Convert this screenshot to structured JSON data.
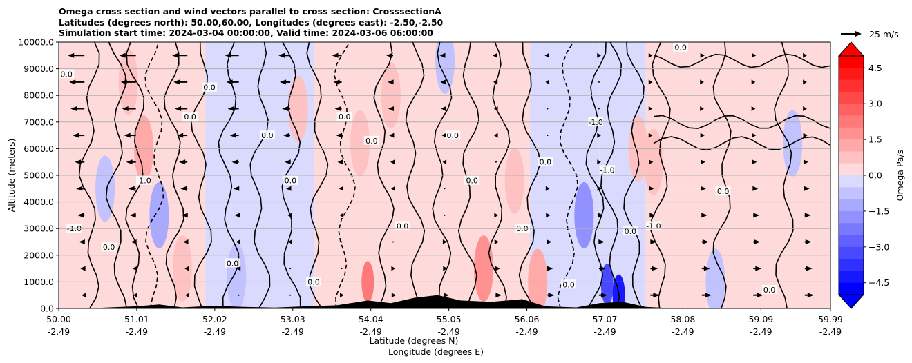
{
  "chart_data": {
    "type": "heatmap",
    "title_lines": [
      "Omega cross section and wind vectors parallel to cross section: CrosssectionA",
      "Latitudes (degrees north): 50.00,60.00, Longitudes (degrees east): -2.50,-2.50",
      "Simulation start time: 2024-03-04 00:00:00, Valid time: 2024-03-06 06:00:00"
    ],
    "ylabel": "Altitude (meters)",
    "xlabel_lines": [
      "Latitude (degrees N)",
      "Longitude (degrees E)"
    ],
    "x_ticks_lat": [
      "50.00",
      "51.01",
      "52.02",
      "53.03",
      "54.04",
      "55.05",
      "56.06",
      "57.07",
      "58.08",
      "59.09",
      "59.99"
    ],
    "x_ticks_lon": [
      "-2.49",
      "-2.49",
      "-2.49",
      "-2.49",
      "-2.49",
      "-2.49",
      "-2.49",
      "-2.49",
      "-2.49",
      "-2.49",
      "-2.49"
    ],
    "y_ticks": [
      "0.0",
      "1000.0",
      "2000.0",
      "3000.0",
      "4000.0",
      "5000.0",
      "6000.0",
      "7000.0",
      "8000.0",
      "9000.0",
      "10000.0"
    ],
    "xlim": [
      50.0,
      59.99
    ],
    "ylim": [
      0,
      10000
    ],
    "grid": "horizontal",
    "colorbar": {
      "label": "Omega Pa/s",
      "ticks": [
        "4.5",
        "3.0",
        "1.5",
        "0.0",
        "−1.5",
        "−3.0",
        "−4.5"
      ],
      "range": [
        -5.0,
        5.0
      ],
      "extend": "both",
      "neg_color": "#0000ff",
      "pos_color": "#ff0000"
    },
    "quiver_key": {
      "label": "25 m/s"
    },
    "regions": [
      {
        "lat_from": 50.0,
        "lat_to": 51.9,
        "alt_from": 0,
        "alt_to": 10000,
        "omega": 0.3
      },
      {
        "lat_from": 51.9,
        "lat_to": 53.3,
        "alt_from": 0,
        "alt_to": 10000,
        "omega": -0.15
      },
      {
        "lat_from": 53.3,
        "lat_to": 56.1,
        "alt_from": 0,
        "alt_to": 10000,
        "omega": 0.25
      },
      {
        "lat_from": 56.1,
        "lat_to": 57.0,
        "alt_from": 0,
        "alt_to": 10000,
        "omega": -0.2
      },
      {
        "lat_from": 57.0,
        "lat_to": 57.6,
        "alt_from": 0,
        "alt_to": 10000,
        "omega": -0.4
      },
      {
        "lat_from": 57.6,
        "lat_to": 59.99,
        "alt_from": 4500,
        "alt_to": 10000,
        "omega": 0.2
      },
      {
        "lat_from": 57.6,
        "lat_to": 59.99,
        "alt_from": 0,
        "alt_to": 4500,
        "omega": 0.15
      }
    ],
    "cells": [
      {
        "lat": 50.9,
        "alt": 8500,
        "omega": 0.9
      },
      {
        "lat": 51.1,
        "alt": 6000,
        "omega": 1.1
      },
      {
        "lat": 51.3,
        "alt": 3500,
        "omega": -1.5
      },
      {
        "lat": 50.6,
        "alt": 4500,
        "omega": -1.0
      },
      {
        "lat": 53.1,
        "alt": 7500,
        "omega": 0.9
      },
      {
        "lat": 53.9,
        "alt": 6200,
        "omega": 0.8
      },
      {
        "lat": 54.3,
        "alt": 8000,
        "omega": 0.7
      },
      {
        "lat": 55.9,
        "alt": 4800,
        "omega": 0.6
      },
      {
        "lat": 54.0,
        "alt": 1000,
        "omega": 2.5
      },
      {
        "lat": 55.5,
        "alt": 1500,
        "omega": 1.8
      },
      {
        "lat": 56.2,
        "alt": 1000,
        "omega": 1.2
      },
      {
        "lat": 56.8,
        "alt": 3500,
        "omega": -1.8
      },
      {
        "lat": 57.1,
        "alt": 900,
        "omega": -3.5
      },
      {
        "lat": 57.25,
        "alt": 500,
        "omega": -4.5
      },
      {
        "lat": 57.5,
        "alt": 6000,
        "omega": 0.7
      },
      {
        "lat": 57.7,
        "alt": 5500,
        "omega": 0.6
      },
      {
        "lat": 58.5,
        "alt": 1000,
        "omega": -0.8
      },
      {
        "lat": 59.5,
        "alt": 6200,
        "omega": -0.6
      },
      {
        "lat": 52.3,
        "alt": 1200,
        "omega": -0.9
      },
      {
        "lat": 51.6,
        "alt": 1500,
        "omega": 1.0
      },
      {
        "lat": 55.0,
        "alt": 9300,
        "omega": -0.9
      }
    ],
    "wind_rows": [
      {
        "alt": 9500,
        "u": [
          -22,
          -22,
          -20,
          -18,
          -15,
          -12,
          -8,
          -5,
          -3,
          -2,
          1,
          1,
          2,
          2,
          1
        ]
      },
      {
        "alt": 8500,
        "u": [
          -20,
          -20,
          -18,
          -16,
          -13,
          -10,
          -6,
          -4,
          -2,
          -1,
          0,
          1,
          1,
          1,
          1
        ]
      },
      {
        "alt": 7500,
        "u": [
          -18,
          -18,
          -16,
          -14,
          -10,
          -8,
          -5,
          -3,
          -1,
          0,
          0,
          1,
          1,
          1,
          1
        ]
      },
      {
        "alt": 6500,
        "u": [
          -15,
          -15,
          -13,
          -11,
          -8,
          -6,
          -4,
          -2,
          -1,
          0,
          1,
          1,
          2,
          2,
          2
        ]
      },
      {
        "alt": 5500,
        "u": [
          -12,
          -12,
          -10,
          -8,
          -6,
          -4,
          -2,
          -1,
          0,
          0,
          1,
          2,
          3,
          3,
          3
        ]
      },
      {
        "alt": 4500,
        "u": [
          -10,
          -9,
          -8,
          -6,
          -4,
          -2,
          -1,
          0,
          0,
          1,
          2,
          3,
          4,
          5,
          5
        ]
      },
      {
        "alt": 3500,
        "u": [
          -8,
          -7,
          -6,
          -4,
          -2,
          -1,
          0,
          0,
          1,
          2,
          4,
          5,
          6,
          7,
          7
        ]
      },
      {
        "alt": 2500,
        "u": [
          -6,
          -5,
          -4,
          -2,
          -1,
          0,
          0,
          1,
          2,
          4,
          6,
          7,
          8,
          8,
          8
        ]
      },
      {
        "alt": 1500,
        "u": [
          -4,
          -3,
          -2,
          -1,
          0,
          0,
          1,
          2,
          4,
          6,
          8,
          9,
          10,
          10,
          9
        ]
      },
      {
        "alt": 500,
        "u": [
          -2,
          -2,
          -1,
          0,
          0,
          1,
          2,
          4,
          6,
          8,
          10,
          11,
          12,
          12,
          11
        ]
      }
    ],
    "contour_labels": [
      "0.0",
      "-1.0"
    ],
    "terrain": [
      [
        50.0,
        0
      ],
      [
        50.5,
        20
      ],
      [
        51.0,
        80
      ],
      [
        51.3,
        150
      ],
      [
        51.6,
        40
      ],
      [
        52.0,
        100
      ],
      [
        52.4,
        60
      ],
      [
        52.8,
        30
      ],
      [
        53.2,
        80
      ],
      [
        53.6,
        120
      ],
      [
        54.0,
        300
      ],
      [
        54.3,
        200
      ],
      [
        54.6,
        400
      ],
      [
        54.9,
        500
      ],
      [
        55.2,
        300
      ],
      [
        55.6,
        250
      ],
      [
        56.0,
        350
      ],
      [
        56.3,
        80
      ],
      [
        56.7,
        40
      ],
      [
        57.0,
        200
      ],
      [
        57.3,
        250
      ],
      [
        57.6,
        60
      ],
      [
        58.0,
        0
      ],
      [
        59.99,
        0
      ]
    ]
  }
}
